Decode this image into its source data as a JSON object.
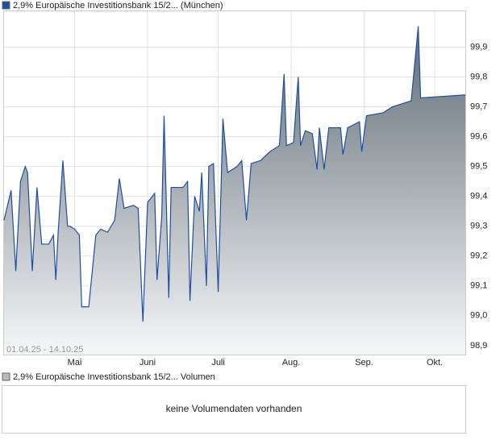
{
  "chart_data": {
    "type": "area",
    "title": "2,9% Europäische Investitionsbank 15/2... (München)",
    "range_label": "01.04.25 - 14.10.25",
    "volume_title": "2,9% Europäische Investitionsbank 15/2... Volumen",
    "volume_message": "keine Volumendaten vorhanden",
    "x": [
      "2025-04-01",
      "2025-04-04",
      "2025-04-06",
      "2025-04-08",
      "2025-04-10",
      "2025-04-11",
      "2025-04-13",
      "2025-04-15",
      "2025-04-17",
      "2025-04-20",
      "2025-04-22",
      "2025-04-23",
      "2025-04-24",
      "2025-04-26",
      "2025-04-28",
      "2025-04-29",
      "2025-05-01",
      "2025-05-03",
      "2025-05-04",
      "2025-05-07",
      "2025-05-10",
      "2025-05-12",
      "2025-05-15",
      "2025-05-18",
      "2025-05-20",
      "2025-05-22",
      "2025-05-26",
      "2025-05-28",
      "2025-05-30",
      "2025-06-01",
      "2025-06-04",
      "2025-06-05",
      "2025-06-07",
      "2025-06-08",
      "2025-06-10",
      "2025-06-11",
      "2025-06-16",
      "2025-06-18",
      "2025-06-19",
      "2025-06-21",
      "2025-06-23",
      "2025-06-24",
      "2025-06-26",
      "2025-06-27",
      "2025-06-29",
      "2025-07-01",
      "2025-07-03",
      "2025-07-05",
      "2025-07-09",
      "2025-07-11",
      "2025-07-13",
      "2025-07-15",
      "2025-07-19",
      "2025-07-23",
      "2025-07-27",
      "2025-07-29",
      "2025-07-30",
      "2025-08-02",
      "2025-08-04",
      "2025-08-05",
      "2025-08-07",
      "2025-08-10",
      "2025-08-12",
      "2025-08-13",
      "2025-08-15",
      "2025-08-17",
      "2025-08-22",
      "2025-08-23",
      "2025-08-25",
      "2025-08-30",
      "2025-08-31",
      "2025-09-02",
      "2025-09-09",
      "2025-09-13",
      "2025-09-17",
      "2025-09-21",
      "2025-09-24",
      "2025-09-25",
      "2025-10-14"
    ],
    "series": [
      {
        "name": "2,9% Europäische Investitionsbank 15/2...",
        "color": "#1f4fa0",
        "values": [
          99.32,
          99.42,
          99.15,
          99.45,
          99.5,
          99.48,
          99.15,
          99.43,
          99.24,
          99.24,
          99.27,
          99.12,
          99.28,
          99.52,
          99.3,
          99.3,
          99.29,
          99.27,
          99.03,
          99.03,
          99.27,
          99.29,
          99.28,
          99.32,
          99.46,
          99.36,
          99.37,
          99.36,
          98.98,
          99.38,
          99.41,
          99.12,
          99.33,
          99.67,
          99.06,
          99.43,
          99.43,
          99.45,
          99.05,
          99.4,
          99.35,
          99.48,
          99.1,
          99.5,
          99.51,
          99.08,
          99.66,
          99.48,
          99.5,
          99.52,
          99.32,
          99.51,
          99.52,
          99.55,
          99.57,
          99.81,
          99.57,
          99.58,
          99.8,
          99.57,
          99.62,
          99.61,
          99.49,
          99.63,
          99.49,
          99.63,
          99.63,
          99.54,
          99.63,
          99.65,
          99.55,
          99.67,
          99.68,
          99.7,
          99.71,
          99.72,
          99.97,
          99.73,
          99.74
        ]
      }
    ],
    "xlim": [
      "2025-04-01",
      "2025-10-14"
    ],
    "xticks": [
      {
        "value": "2025-05-01",
        "label": "Mai"
      },
      {
        "value": "2025-06-01",
        "label": "Juni"
      },
      {
        "value": "2025-07-01",
        "label": "Juli"
      },
      {
        "value": "2025-08-01",
        "label": "Aug."
      },
      {
        "value": "2025-09-01",
        "label": "Sep."
      },
      {
        "value": "2025-10-01",
        "label": "Okt."
      }
    ],
    "ylim": [
      98.87,
      100.02
    ],
    "yticks": [
      {
        "value": 98.9,
        "label": "98,9"
      },
      {
        "value": 99.0,
        "label": "99,0"
      },
      {
        "value": 99.1,
        "label": "99,1"
      },
      {
        "value": 99.2,
        "label": "99,2"
      },
      {
        "value": 99.3,
        "label": "99,3"
      },
      {
        "value": 99.4,
        "label": "99,4"
      },
      {
        "value": 99.5,
        "label": "99,5"
      },
      {
        "value": 99.6,
        "label": "99,6"
      },
      {
        "value": 99.7,
        "label": "99,7"
      },
      {
        "value": 99.8,
        "label": "99,8"
      },
      {
        "value": 99.9,
        "label": "99,9"
      }
    ],
    "grid": true
  }
}
